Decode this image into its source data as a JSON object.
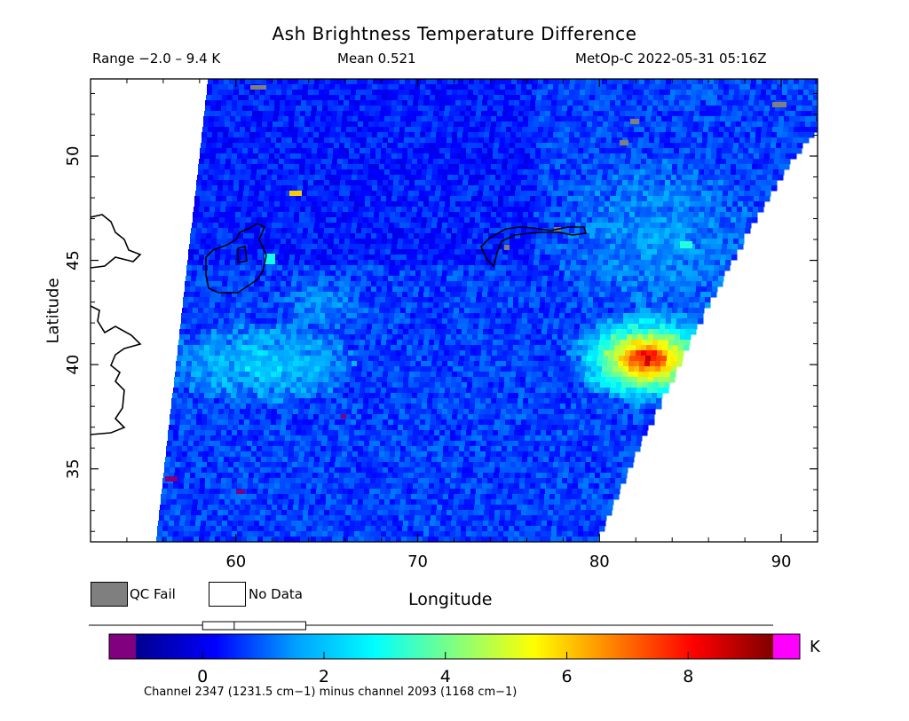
{
  "chart_data": {
    "type": "heatmap",
    "title": "Ash Brightness Temperature Difference",
    "header": {
      "range": "Range −2.0 – 9.4 K",
      "mean": "Mean 0.521",
      "satellite": "MetOp-C 2022-05-31 05:16Z"
    },
    "xlabel": "Longitude",
    "ylabel": "Latitude",
    "xlim": [
      52,
      92
    ],
    "ylim": [
      31.5,
      53.7
    ],
    "x_ticks": [
      60,
      70,
      80,
      90
    ],
    "y_ticks": [
      35,
      40,
      45,
      50
    ],
    "colorbar": {
      "unit": "K",
      "range": [
        -1.1,
        9.4
      ],
      "ticks": [
        0,
        2,
        4,
        6,
        8
      ],
      "under_color": "#800080",
      "over_color": "#ff00ff",
      "stops": [
        "#00008f",
        "#0000ff",
        "#00a0ff",
        "#00ffff",
        "#80ff80",
        "#ffff00",
        "#ff8000",
        "#ff0000",
        "#800000"
      ]
    },
    "caption": "Channel 2347 (1231.5 cm−1) minus channel 2093 (1168 cm−1)",
    "legend": [
      {
        "label": "QC Fail",
        "color": "#7f7f7f"
      },
      {
        "label": "No Data",
        "color": "#ffffff"
      }
    ],
    "hotspot": {
      "lon": 82.5,
      "lat": 40.3,
      "max_value": 9.4
    },
    "mean_value": 0.521
  }
}
